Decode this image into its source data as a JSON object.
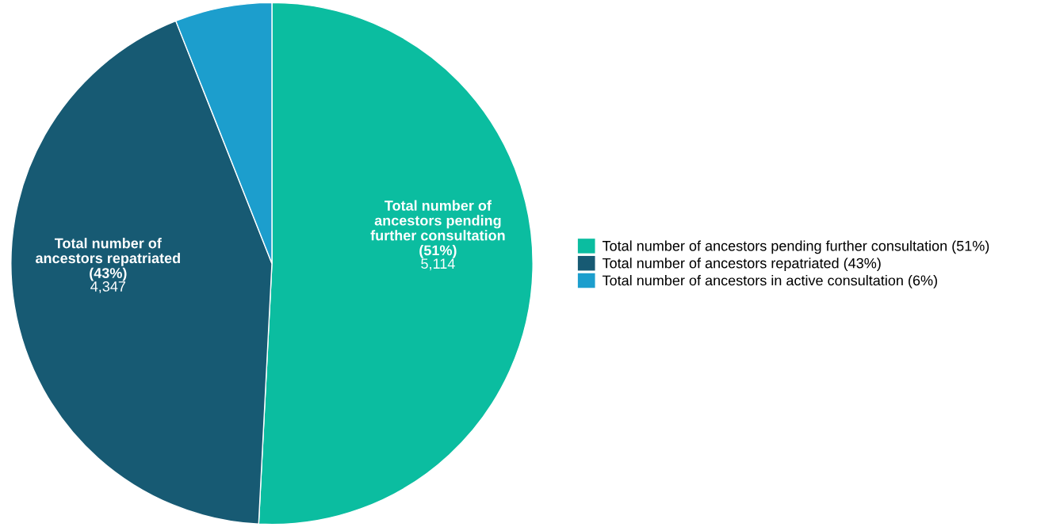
{
  "chart_data": {
    "type": "pie",
    "categories": [
      "Total number of ancestors pending further consultation (51%)",
      "Total number of ancestors repatriated (43%)",
      "Total number of ancestors in active consultation (6%)"
    ],
    "values": [
      5114,
      4347,
      604
    ],
    "colors": [
      "#0bbda0",
      "#175a73",
      "#1c9ecd"
    ],
    "value_labels": [
      "5,114",
      "4,347",
      null
    ],
    "legend": "right"
  }
}
